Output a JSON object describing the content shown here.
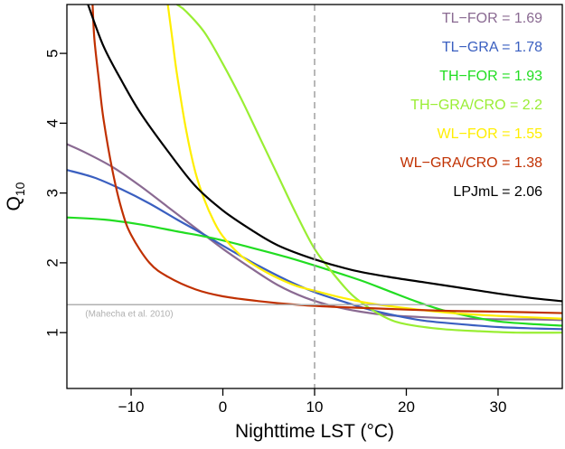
{
  "chart_data": {
    "type": "line",
    "xlabel": "Nighttime LST (°C)",
    "ylabel": "Q",
    "ylabel_sub": "10",
    "xlim": [
      -17,
      37
    ],
    "ylim": [
      0.2,
      5.7
    ],
    "x_ticks": [
      -10,
      0,
      10,
      20,
      30
    ],
    "x_tick_labels": [
      "−10",
      "0",
      "10",
      "20",
      "30"
    ],
    "y_ticks": [
      1,
      2,
      3,
      4,
      5
    ],
    "y_tick_labels": [
      "1",
      "2",
      "3",
      "4",
      "5"
    ],
    "reference_line": {
      "y": 1.4,
      "label": "(Mahecha et al. 2010)",
      "color": "#b0b0b0"
    },
    "vertical_line": {
      "x": 10,
      "color": "#a0a0a0",
      "style": "dashed"
    },
    "legend_placement": "top-right",
    "series": [
      {
        "name": "TL−FOR = 1.69",
        "color": "#8a6a92",
        "points": [
          [
            -17,
            3.7
          ],
          [
            -15,
            3.58
          ],
          [
            -12,
            3.37
          ],
          [
            -9,
            3.1
          ],
          [
            -6,
            2.8
          ],
          [
            -3,
            2.5
          ],
          [
            0,
            2.2
          ],
          [
            3,
            1.93
          ],
          [
            6,
            1.68
          ],
          [
            9,
            1.5
          ],
          [
            12,
            1.38
          ],
          [
            15,
            1.3
          ],
          [
            18,
            1.25
          ],
          [
            22,
            1.22
          ],
          [
            26,
            1.2
          ],
          [
            30,
            1.19
          ],
          [
            34,
            1.19
          ],
          [
            37,
            1.18
          ]
        ]
      },
      {
        "name": "TL−GRA = 1.78",
        "color": "#3a5fc0",
        "points": [
          [
            -17,
            3.33
          ],
          [
            -14,
            3.22
          ],
          [
            -11,
            3.05
          ],
          [
            -8,
            2.85
          ],
          [
            -5,
            2.62
          ],
          [
            -2,
            2.4
          ],
          [
            1,
            2.17
          ],
          [
            4,
            1.95
          ],
          [
            7,
            1.75
          ],
          [
            10,
            1.58
          ],
          [
            13,
            1.45
          ],
          [
            16,
            1.33
          ],
          [
            19,
            1.24
          ],
          [
            22,
            1.17
          ],
          [
            26,
            1.12
          ],
          [
            30,
            1.08
          ],
          [
            34,
            1.06
          ],
          [
            37,
            1.05
          ]
        ]
      },
      {
        "name": "TH−FOR = 1.93",
        "color": "#22dd22",
        "points": [
          [
            -17,
            2.65
          ],
          [
            -13,
            2.62
          ],
          [
            -9,
            2.55
          ],
          [
            -5,
            2.45
          ],
          [
            -1,
            2.35
          ],
          [
            3,
            2.22
          ],
          [
            7,
            2.08
          ],
          [
            11,
            1.92
          ],
          [
            15,
            1.75
          ],
          [
            18,
            1.6
          ],
          [
            21,
            1.45
          ],
          [
            24,
            1.32
          ],
          [
            27,
            1.23
          ],
          [
            30,
            1.16
          ],
          [
            34,
            1.12
          ],
          [
            37,
            1.1
          ]
        ]
      },
      {
        "name": "TH−GRA/CRO = 2.2",
        "color": "#99ee33",
        "points": [
          [
            -5,
            5.7
          ],
          [
            -4,
            5.6
          ],
          [
            -2,
            5.3
          ],
          [
            0,
            4.85
          ],
          [
            2,
            4.35
          ],
          [
            4,
            3.8
          ],
          [
            6,
            3.25
          ],
          [
            8,
            2.7
          ],
          [
            10,
            2.2
          ],
          [
            12,
            1.85
          ],
          [
            14,
            1.55
          ],
          [
            16,
            1.35
          ],
          [
            18,
            1.2
          ],
          [
            20,
            1.12
          ],
          [
            24,
            1.05
          ],
          [
            28,
            1.02
          ],
          [
            32,
            1.0
          ],
          [
            37,
            1.0
          ]
        ]
      },
      {
        "name": "WL−FOR = 1.55",
        "color": "#ffee00",
        "points": [
          [
            -6,
            5.7
          ],
          [
            -5.5,
            5.2
          ],
          [
            -5,
            4.7
          ],
          [
            -4,
            3.9
          ],
          [
            -3,
            3.3
          ],
          [
            -2,
            2.9
          ],
          [
            -1,
            2.6
          ],
          [
            0,
            2.38
          ],
          [
            2,
            2.1
          ],
          [
            4,
            1.92
          ],
          [
            6,
            1.78
          ],
          [
            8,
            1.67
          ],
          [
            10,
            1.6
          ],
          [
            13,
            1.5
          ],
          [
            16,
            1.42
          ],
          [
            20,
            1.35
          ],
          [
            25,
            1.28
          ],
          [
            30,
            1.24
          ],
          [
            37,
            1.2
          ]
        ]
      },
      {
        "name": "WL−GRA/CRO = 1.38",
        "color": "#c03000",
        "points": [
          [
            -14.2,
            5.7
          ],
          [
            -14,
            5.2
          ],
          [
            -13.5,
            4.6
          ],
          [
            -13,
            4.05
          ],
          [
            -12,
            3.3
          ],
          [
            -11,
            2.75
          ],
          [
            -10,
            2.4
          ],
          [
            -8,
            2.0
          ],
          [
            -6,
            1.8
          ],
          [
            -3,
            1.62
          ],
          [
            0,
            1.52
          ],
          [
            4,
            1.45
          ],
          [
            8,
            1.4
          ],
          [
            12,
            1.37
          ],
          [
            16,
            1.35
          ],
          [
            20,
            1.33
          ],
          [
            25,
            1.31
          ],
          [
            30,
            1.3
          ],
          [
            37,
            1.28
          ]
        ]
      },
      {
        "name": "LPJmL = 2.06",
        "color": "#000000",
        "points": [
          [
            -14.7,
            5.7
          ],
          [
            -13,
            5.1
          ],
          [
            -11,
            4.6
          ],
          [
            -9,
            4.15
          ],
          [
            -6,
            3.6
          ],
          [
            -3,
            3.1
          ],
          [
            0,
            2.75
          ],
          [
            3,
            2.48
          ],
          [
            6,
            2.25
          ],
          [
            10,
            2.05
          ],
          [
            14,
            1.9
          ],
          [
            18,
            1.8
          ],
          [
            22,
            1.72
          ],
          [
            26,
            1.64
          ],
          [
            30,
            1.56
          ],
          [
            34,
            1.49
          ],
          [
            37,
            1.45
          ]
        ]
      }
    ]
  }
}
